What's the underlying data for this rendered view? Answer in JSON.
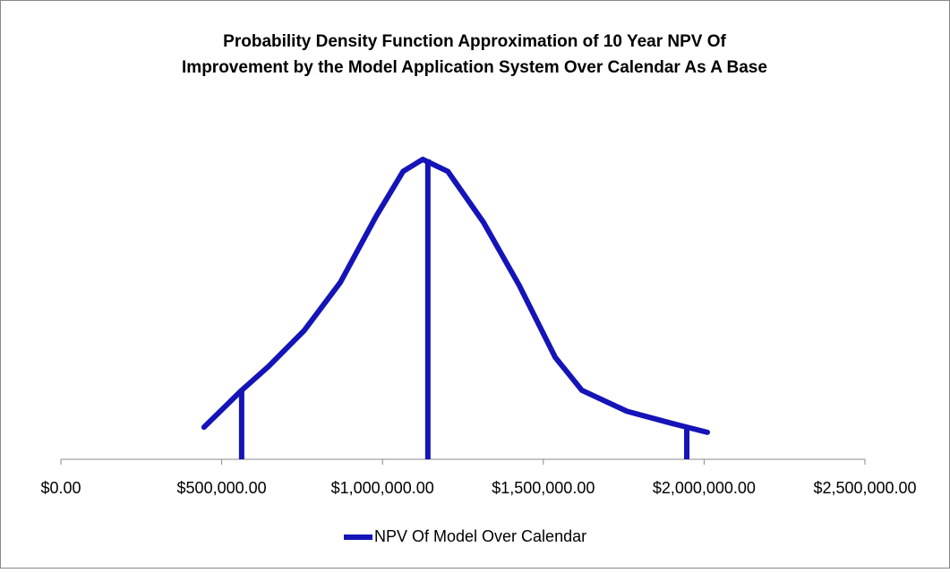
{
  "chart_data": {
    "type": "line",
    "title": [
      "Probability Density Function  Approximation of 10 Year NPV Of",
      "Improvement by the Model Application System Over Calendar As A Base"
    ],
    "xlim": [
      0,
      2500000
    ],
    "xticks": [
      {
        "value": 0,
        "label": "$0.00"
      },
      {
        "value": 500000,
        "label": "$500,000.00"
      },
      {
        "value": 1000000,
        "label": "$1,000,000.00"
      },
      {
        "value": 1500000,
        "label": "$1,500,000.00"
      },
      {
        "value": 2000000,
        "label": "$2,000,000.00"
      },
      {
        "value": 2500000,
        "label": "$2,500,000.00"
      }
    ],
    "ylim": [
      0,
      100
    ],
    "series": [
      {
        "name": "NPV Of Model Over Calendar",
        "color": "#1414b8",
        "x": [
          445000,
          562000,
          646000,
          757000,
          869000,
          980000,
          1064000,
          1125000,
          1203000,
          1314000,
          1425000,
          1537000,
          1620000,
          1760000,
          1899000,
          2010000
        ],
        "values": [
          10.7,
          23,
          31,
          43,
          59,
          81,
          96,
          100,
          96,
          79,
          58,
          34,
          23,
          16,
          12,
          9
        ]
      }
    ],
    "reference_lines": {
      "color": "#1414b8",
      "x": [
        562000,
        1141000,
        1946000
      ],
      "values": [
        23,
        100,
        10
      ]
    },
    "legend": "bottom"
  }
}
